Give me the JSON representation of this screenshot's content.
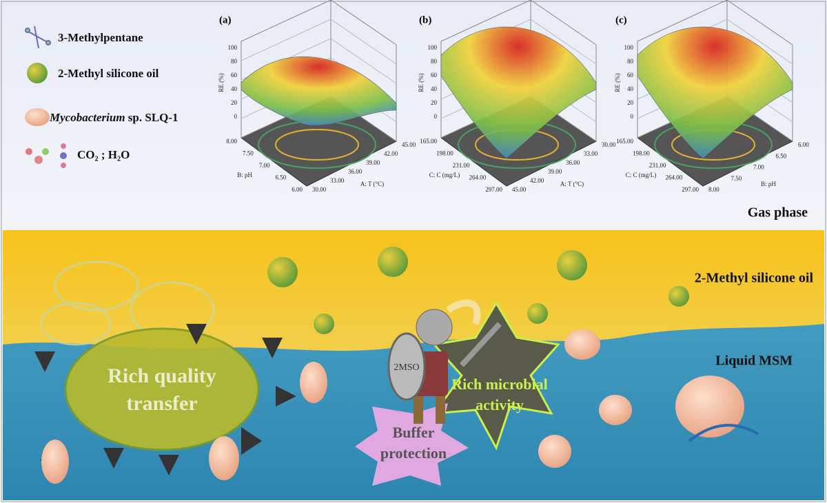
{
  "legend": {
    "items": [
      {
        "label": "3-Methylpentane"
      },
      {
        "label": "2-Methyl silicone oil"
      },
      {
        "label_italic": "Mycobacterium",
        "label": " sp. SLQ-1"
      },
      {
        "label": "CO₂ ; H₂O"
      }
    ]
  },
  "plots": [
    {
      "tag": "(a)",
      "z_title": "RE (%)",
      "z_ticks": [
        "0",
        "20",
        "40",
        "60",
        "80",
        "100"
      ],
      "left_title": "B: pH",
      "left_ticks": [
        "8.00",
        "7.50",
        "7.00",
        "6.50",
        "6.00"
      ],
      "right_title": "A: T (°C)",
      "right_ticks": [
        "30.00",
        "33.00",
        "36.00",
        "39.00",
        "42.00",
        "45.00"
      ]
    },
    {
      "tag": "(b)",
      "z_title": "RE (%)",
      "z_ticks": [
        "0",
        "20",
        "40",
        "60",
        "80",
        "100"
      ],
      "left_title": "C: C (mg/L)",
      "left_ticks": [
        "165.00",
        "198.00",
        "231.00",
        "264.00",
        "297.00"
      ],
      "right_title": "A: T (°C)",
      "right_ticks": [
        "45.00",
        "42.00",
        "39.00",
        "36.00",
        "33.00",
        "30.00"
      ]
    },
    {
      "tag": "(c)",
      "z_title": "RE (%)",
      "z_ticks": [
        "0",
        "20",
        "40",
        "60",
        "80",
        "100"
      ],
      "left_title": "C: C (mg/L)",
      "left_ticks": [
        "165.00",
        "198.00",
        "231.00",
        "264.00",
        "297.00"
      ],
      "right_title": "B: pH",
      "right_ticks": [
        "8.00",
        "7.50",
        "7.00",
        "6.50",
        "6.00"
      ]
    }
  ],
  "labels": {
    "gas_phase": "Gas phase",
    "oil_phase": "2-Methyl silicone oil",
    "liquid_phase": "Liquid MSM",
    "quality_transfer": [
      "Rich quality",
      "transfer"
    ],
    "shield": "2MSO",
    "microbial_activity": [
      "Rich microbial",
      "activity"
    ],
    "buffer": [
      "Buffer",
      "protection"
    ]
  }
}
